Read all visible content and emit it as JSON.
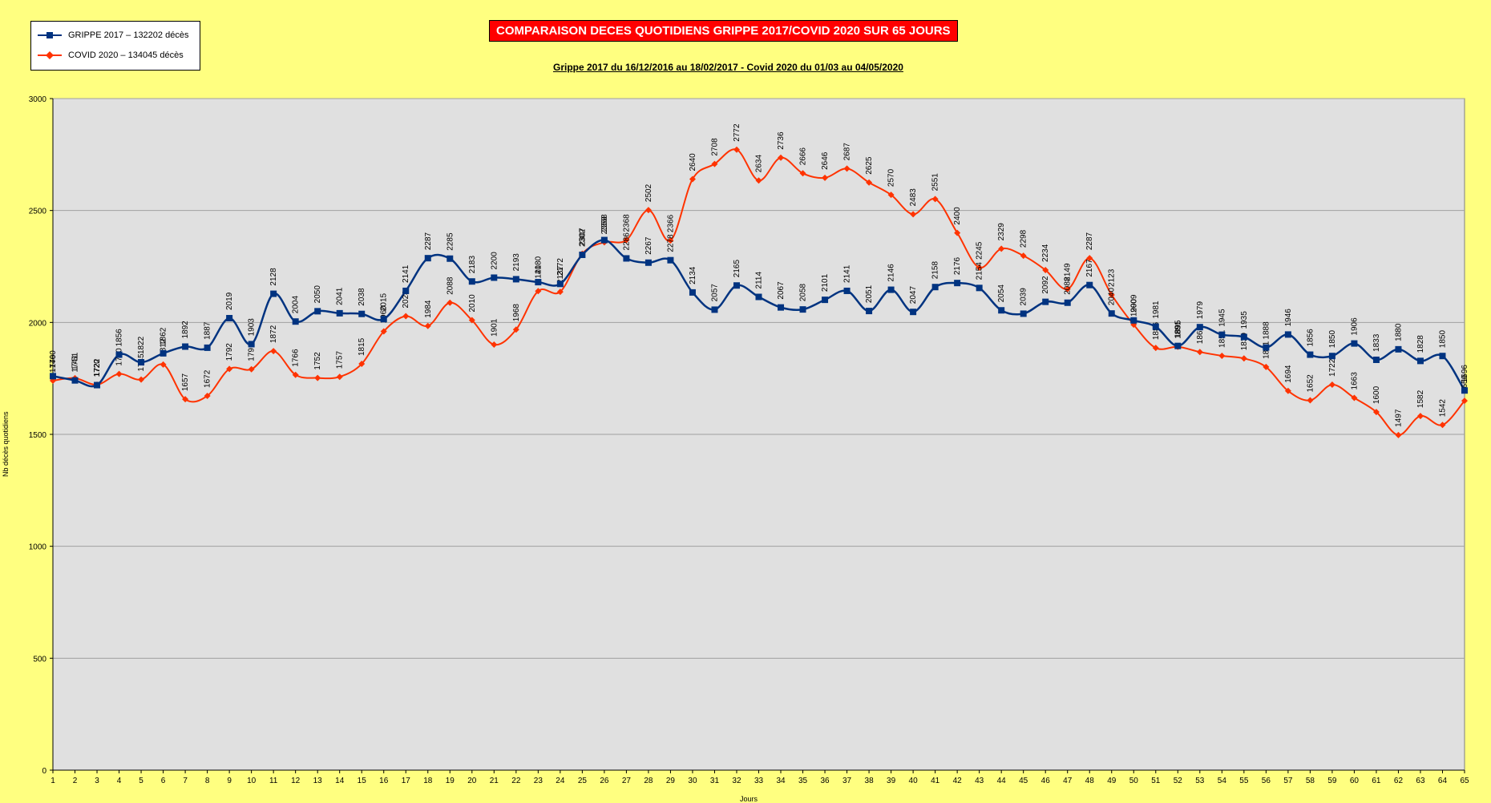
{
  "chart_data": {
    "type": "line",
    "title": "COMPARAISON DECES QUOTIDIENS GRIPPE 2017/COVID 2020 SUR 65 JOURS",
    "subtitle": "Grippe 2017 du 16/12/2016 au 18/02/2017 - Covid 2020 du 01/03 au 04/05/2020",
    "xlabel": "Jours",
    "ylabel": "Nb décès quotidiens",
    "ylim": [
      0,
      3000
    ],
    "yticks": [
      0,
      500,
      1000,
      1500,
      2000,
      2500,
      3000
    ],
    "x": [
      1,
      2,
      3,
      4,
      5,
      6,
      7,
      8,
      9,
      10,
      11,
      12,
      13,
      14,
      15,
      16,
      17,
      18,
      19,
      20,
      21,
      22,
      23,
      24,
      25,
      26,
      27,
      28,
      29,
      30,
      31,
      32,
      33,
      34,
      35,
      36,
      37,
      38,
      39,
      40,
      41,
      42,
      43,
      44,
      45,
      46,
      47,
      48,
      49,
      50,
      51,
      52,
      53,
      54,
      55,
      56,
      57,
      58,
      59,
      60,
      61,
      62,
      63,
      64,
      65
    ],
    "legend_position": "top-left",
    "grid": true,
    "series": [
      {
        "name": "GRIPPE 2017 – 132202 décès",
        "color": "#003380",
        "marker": "square",
        "values": [
          1760,
          1741,
          1720,
          1856,
          1822,
          1862,
          1892,
          1887,
          2019,
          1903,
          2128,
          2004,
          2050,
          2041,
          2038,
          2015,
          2141,
          2287,
          2285,
          2183,
          2200,
          2193,
          2180,
          2172,
          2302,
          2368,
          2286,
          2267,
          2278,
          2134,
          2057,
          2165,
          2114,
          2067,
          2058,
          2101,
          2141,
          2051,
          2146,
          2047,
          2158,
          2176,
          2154,
          2054,
          2039,
          2092,
          2088,
          2167,
          2040,
          2009,
          1981,
          1895,
          1979,
          1945,
          1935,
          1888,
          1946,
          1856,
          1850,
          1906,
          1833,
          1880,
          1828,
          1850,
          1696
        ]
      },
      {
        "name": "COVID 2020 – 134045 décès",
        "color": "#ff3300",
        "marker": "diamond",
        "values": [
          1740,
          1751,
          1722,
          1770,
          1745,
          1812,
          1657,
          1672,
          1792,
          1791,
          1872,
          1766,
          1752,
          1757,
          1815,
          1960,
          2028,
          1984,
          2088,
          2010,
          1901,
          1968,
          2140,
          2137,
          2307,
          2358,
          2368,
          2502,
          2366,
          2640,
          2708,
          2772,
          2634,
          2736,
          2666,
          2646,
          2687,
          2625,
          2570,
          2483,
          2551,
          2400,
          2245,
          2329,
          2298,
          2234,
          2149,
          2287,
          2123,
          1990,
          1886,
          1891,
          1868,
          1851,
          1839,
          1801,
          1694,
          1652,
          1722,
          1663,
          1600,
          1497,
          1582,
          1542,
          1650
        ]
      }
    ]
  }
}
